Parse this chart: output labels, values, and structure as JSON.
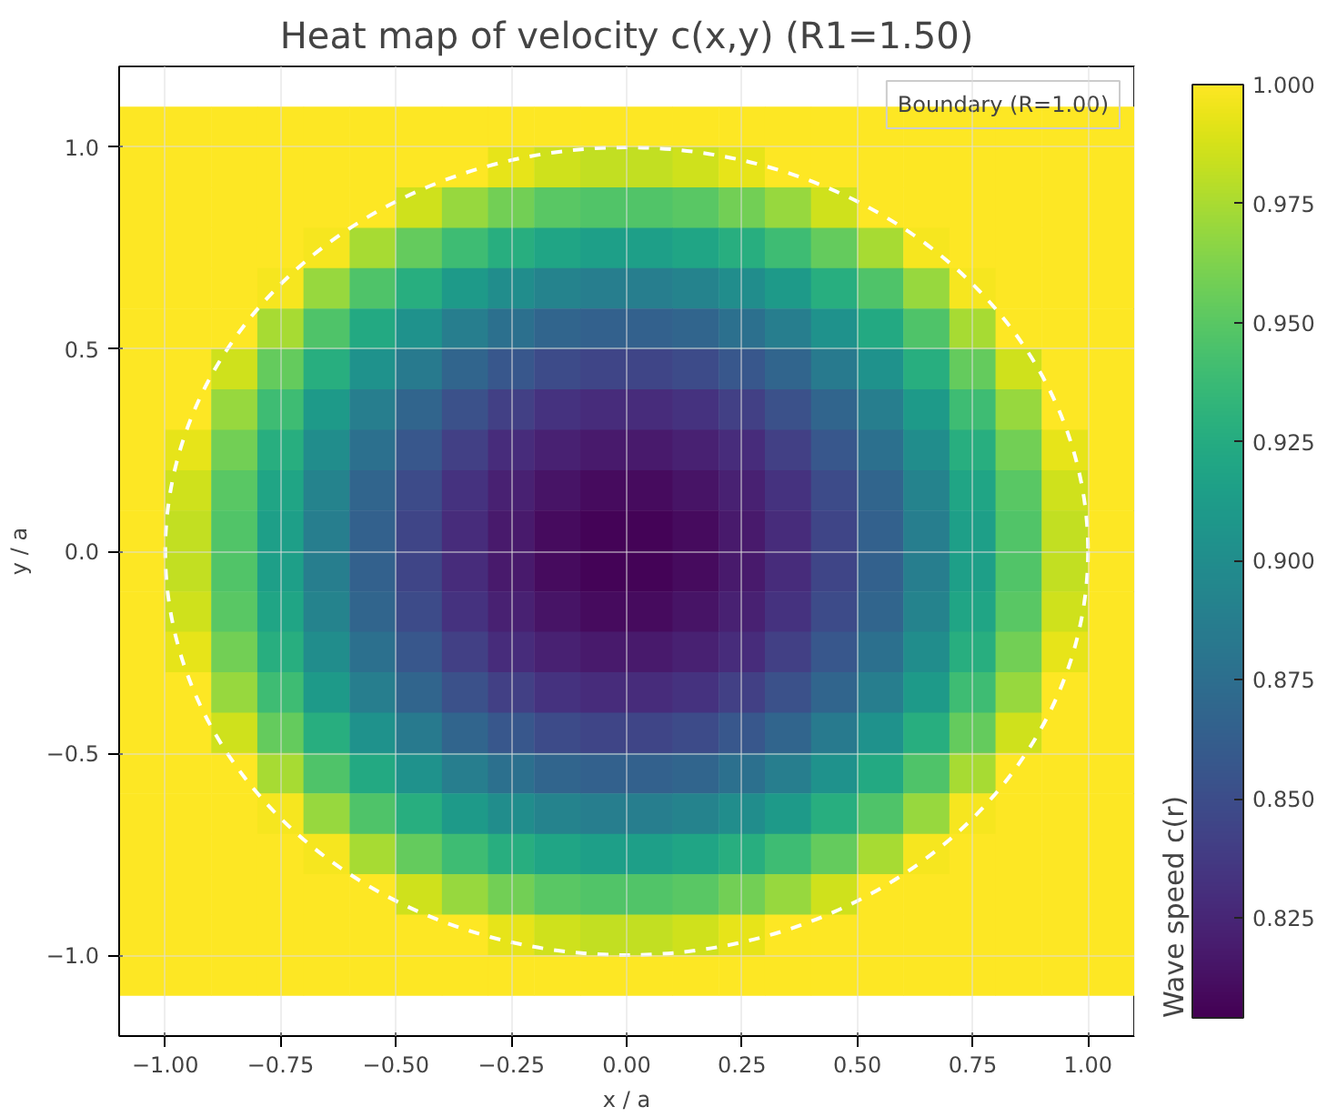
{
  "chart_data": {
    "type": "heatmap",
    "title": "Heat map of velocity c(x,y) (R1=1.50)",
    "xlabel": "x / a",
    "ylabel": "y / a",
    "clabel": "Wave speed c(r)",
    "x": [
      -1.05,
      -0.95,
      -0.85,
      -0.75,
      -0.65,
      -0.55,
      -0.45,
      -0.35,
      -0.25,
      -0.15,
      -0.05,
      0.05,
      0.15,
      0.25,
      0.35,
      0.45,
      0.55,
      0.65,
      0.75,
      0.85,
      0.95,
      1.05
    ],
    "y": [
      1.05,
      0.95,
      0.85,
      0.75,
      0.65,
      0.55,
      0.45,
      0.35,
      0.25,
      0.15,
      0.05,
      -0.05,
      -0.15,
      -0.25,
      -0.35,
      -0.45,
      -0.55,
      -0.65,
      -0.75,
      -0.85,
      -0.95,
      -1.05
    ],
    "cells": [
      [
        1,
        1,
        1,
        1,
        1,
        1,
        1,
        1,
        1,
        1,
        1,
        1,
        1,
        1,
        1,
        1,
        1,
        1,
        1,
        1,
        1,
        1
      ],
      [
        1,
        1,
        1,
        1,
        1,
        1,
        1,
        1,
        0.993,
        0.986,
        0.982,
        0.982,
        0.986,
        0.993,
        1,
        1,
        1,
        1,
        1,
        1,
        1,
        1
      ],
      [
        1,
        1,
        1,
        1,
        1,
        1,
        0.986,
        0.97,
        0.958,
        0.95,
        0.947,
        0.947,
        0.95,
        0.958,
        0.97,
        0.986,
        1,
        1,
        1,
        1,
        1,
        1
      ],
      [
        1,
        1,
        1,
        1,
        0.997,
        0.974,
        0.954,
        0.939,
        0.927,
        0.919,
        0.915,
        0.915,
        0.919,
        0.927,
        0.939,
        0.954,
        0.974,
        0.997,
        1,
        1,
        1,
        1
      ],
      [
        1,
        1,
        1,
        0.997,
        0.97,
        0.946,
        0.927,
        0.911,
        0.9,
        0.892,
        0.888,
        0.888,
        0.892,
        0.9,
        0.911,
        0.927,
        0.946,
        0.97,
        0.997,
        1,
        1,
        1
      ],
      [
        1,
        1,
        1,
        0.974,
        0.946,
        0.923,
        0.904,
        0.888,
        0.876,
        0.868,
        0.865,
        0.865,
        0.868,
        0.876,
        0.888,
        0.904,
        0.923,
        0.946,
        0.974,
        1,
        1,
        1
      ],
      [
        1,
        1,
        0.986,
        0.954,
        0.927,
        0.904,
        0.884,
        0.868,
        0.857,
        0.849,
        0.845,
        0.845,
        0.849,
        0.857,
        0.868,
        0.884,
        0.904,
        0.927,
        0.954,
        0.986,
        1,
        1
      ],
      [
        1,
        1,
        0.97,
        0.939,
        0.911,
        0.888,
        0.868,
        0.853,
        0.841,
        0.833,
        0.829,
        0.829,
        0.833,
        0.841,
        0.853,
        0.868,
        0.888,
        0.911,
        0.939,
        0.97,
        1,
        1
      ],
      [
        1,
        0.993,
        0.958,
        0.927,
        0.9,
        0.876,
        0.857,
        0.841,
        0.829,
        0.822,
        0.818,
        0.818,
        0.822,
        0.829,
        0.841,
        0.857,
        0.876,
        0.9,
        0.927,
        0.958,
        0.993,
        1
      ],
      [
        1,
        0.986,
        0.95,
        0.919,
        0.892,
        0.868,
        0.849,
        0.833,
        0.822,
        0.814,
        0.81,
        0.81,
        0.814,
        0.822,
        0.833,
        0.849,
        0.868,
        0.892,
        0.919,
        0.95,
        0.986,
        1
      ],
      [
        1,
        0.982,
        0.947,
        0.915,
        0.888,
        0.865,
        0.845,
        0.829,
        0.818,
        0.81,
        0.806,
        0.806,
        0.81,
        0.818,
        0.829,
        0.845,
        0.865,
        0.888,
        0.915,
        0.947,
        0.982,
        1
      ],
      [
        1,
        0.982,
        0.947,
        0.915,
        0.888,
        0.865,
        0.845,
        0.829,
        0.818,
        0.81,
        0.806,
        0.806,
        0.81,
        0.818,
        0.829,
        0.845,
        0.865,
        0.888,
        0.915,
        0.947,
        0.982,
        1
      ],
      [
        1,
        0.986,
        0.95,
        0.919,
        0.892,
        0.868,
        0.849,
        0.833,
        0.822,
        0.814,
        0.81,
        0.81,
        0.814,
        0.822,
        0.833,
        0.849,
        0.868,
        0.892,
        0.919,
        0.95,
        0.986,
        1
      ],
      [
        1,
        0.993,
        0.958,
        0.927,
        0.9,
        0.876,
        0.857,
        0.841,
        0.829,
        0.822,
        0.818,
        0.818,
        0.822,
        0.829,
        0.841,
        0.857,
        0.876,
        0.9,
        0.927,
        0.958,
        0.993,
        1
      ],
      [
        1,
        1,
        0.97,
        0.939,
        0.911,
        0.888,
        0.868,
        0.853,
        0.841,
        0.833,
        0.829,
        0.829,
        0.833,
        0.841,
        0.853,
        0.868,
        0.888,
        0.911,
        0.939,
        0.97,
        1,
        1
      ],
      [
        1,
        1,
        0.986,
        0.954,
        0.927,
        0.904,
        0.884,
        0.868,
        0.857,
        0.849,
        0.845,
        0.845,
        0.849,
        0.857,
        0.868,
        0.884,
        0.904,
        0.927,
        0.954,
        0.986,
        1,
        1
      ],
      [
        1,
        1,
        1,
        0.974,
        0.946,
        0.923,
        0.904,
        0.888,
        0.876,
        0.868,
        0.865,
        0.865,
        0.868,
        0.876,
        0.888,
        0.904,
        0.923,
        0.946,
        0.974,
        1,
        1,
        1
      ],
      [
        1,
        1,
        1,
        0.997,
        0.97,
        0.946,
        0.927,
        0.911,
        0.9,
        0.892,
        0.888,
        0.888,
        0.892,
        0.9,
        0.911,
        0.927,
        0.946,
        0.97,
        0.997,
        1,
        1,
        1
      ],
      [
        1,
        1,
        1,
        1,
        0.997,
        0.974,
        0.954,
        0.939,
        0.927,
        0.919,
        0.915,
        0.915,
        0.919,
        0.927,
        0.939,
        0.954,
        0.974,
        0.997,
        1,
        1,
        1,
        1
      ],
      [
        1,
        1,
        1,
        1,
        1,
        1,
        0.986,
        0.97,
        0.958,
        0.95,
        0.947,
        0.947,
        0.95,
        0.958,
        0.97,
        0.986,
        1,
        1,
        1,
        1,
        1,
        1
      ],
      [
        1,
        1,
        1,
        1,
        1,
        1,
        1,
        1,
        0.993,
        0.986,
        0.982,
        0.982,
        0.986,
        0.993,
        1,
        1,
        1,
        1,
        1,
        1,
        1,
        1
      ],
      [
        1,
        1,
        1,
        1,
        1,
        1,
        1,
        1,
        1,
        1,
        1,
        1,
        1,
        1,
        1,
        1,
        1,
        1,
        1,
        1,
        1,
        1
      ]
    ],
    "clim": [
      0.804,
      1.0
    ],
    "cticks": [
      {
        "value": 0.825,
        "label": "0.825"
      },
      {
        "value": 0.85,
        "label": "0.850"
      },
      {
        "value": 0.875,
        "label": "0.875"
      },
      {
        "value": 0.9,
        "label": "0.900"
      },
      {
        "value": 0.925,
        "label": "0.925"
      },
      {
        "value": 0.95,
        "label": "0.950"
      },
      {
        "value": 0.975,
        "label": "0.975"
      },
      {
        "value": 1.0,
        "label": "1.000"
      }
    ],
    "xlim": [
      -1.1,
      1.1
    ],
    "ylim": [
      -1.2,
      1.2
    ],
    "xticks": [
      {
        "value": -1,
        "label": "−1.00"
      },
      {
        "value": -0.75,
        "label": "−0.75"
      },
      {
        "value": -0.5,
        "label": "−0.50"
      },
      {
        "value": -0.25,
        "label": "−0.25"
      },
      {
        "value": 0,
        "label": "0.00"
      },
      {
        "value": 0.25,
        "label": "0.25"
      },
      {
        "value": 0.5,
        "label": "0.50"
      },
      {
        "value": 0.75,
        "label": "0.75"
      },
      {
        "value": 1,
        "label": "1.00"
      }
    ],
    "yticks": [
      {
        "value": -1,
        "label": "−1.0"
      },
      {
        "value": -0.5,
        "label": "−0.5"
      },
      {
        "value": 0,
        "label": "0.0"
      },
      {
        "value": 0.5,
        "label": "0.5"
      },
      {
        "value": 1,
        "label": "1.0"
      }
    ],
    "grid": true,
    "annotations": [
      "Boundary (R=1.00)"
    ]
  }
}
